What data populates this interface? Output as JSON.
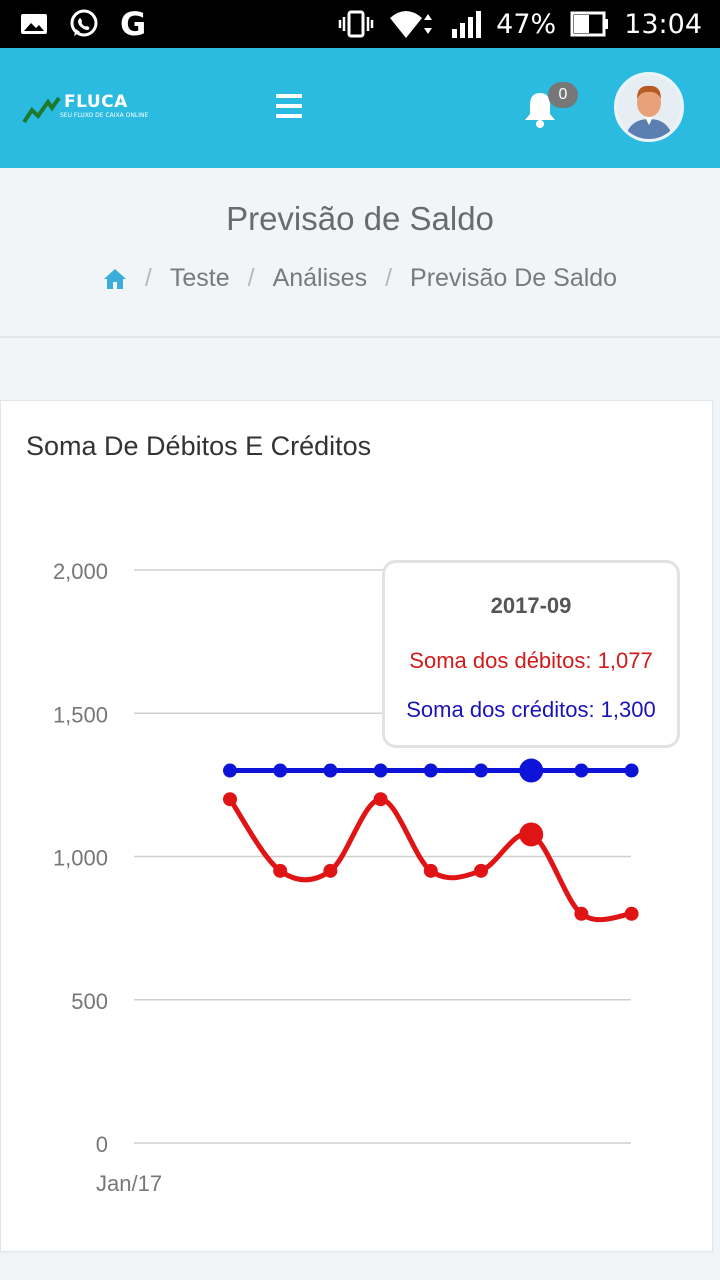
{
  "status_bar": {
    "battery": "47%",
    "time": "13:04",
    "icons": [
      "image-icon",
      "whatsapp-icon",
      "google-icon",
      "vibrate-icon",
      "wifi-icon",
      "signal-icon",
      "battery-icon"
    ],
    "g_glyph": "G"
  },
  "header": {
    "logo_text": "FLUCA",
    "logo_tagline": "SEU FLUXO DE CAIXA ONLINE",
    "notification_count": "0",
    "accent_color": "#2bbbe0"
  },
  "page": {
    "title": "Previsão de Saldo",
    "breadcrumb": [
      "Teste",
      "Análises",
      "Previsão De Saldo"
    ],
    "breadcrumb_separator": "/"
  },
  "card": {
    "title": "Soma De Débitos E Créditos"
  },
  "tooltip": {
    "date": "2017-09",
    "debit_text": "Soma dos débitos: 1,077",
    "credit_text": "Soma dos créditos: 1,300"
  },
  "chart_data": {
    "type": "line",
    "title": "Soma De Débitos E Créditos",
    "x_tick_labels": [
      "Jan/17"
    ],
    "y_ticks": [
      "0",
      "500",
      "1,000",
      "1,500",
      "2,000"
    ],
    "y_tick_values": [
      0,
      500,
      1000,
      1500,
      2000
    ],
    "ylim": [
      0,
      2000
    ],
    "grid": true,
    "point_count": 9,
    "highlight_index": 6,
    "series": [
      {
        "name": "Soma dos débitos",
        "color": "#e01414",
        "values": [
          1200,
          950,
          950,
          1200,
          950,
          950,
          1077,
          800,
          800
        ]
      },
      {
        "name": "Soma dos créditos",
        "color": "#0d14d8",
        "values": [
          1300,
          1300,
          1300,
          1300,
          1300,
          1300,
          1300,
          1300,
          1300
        ]
      }
    ]
  }
}
